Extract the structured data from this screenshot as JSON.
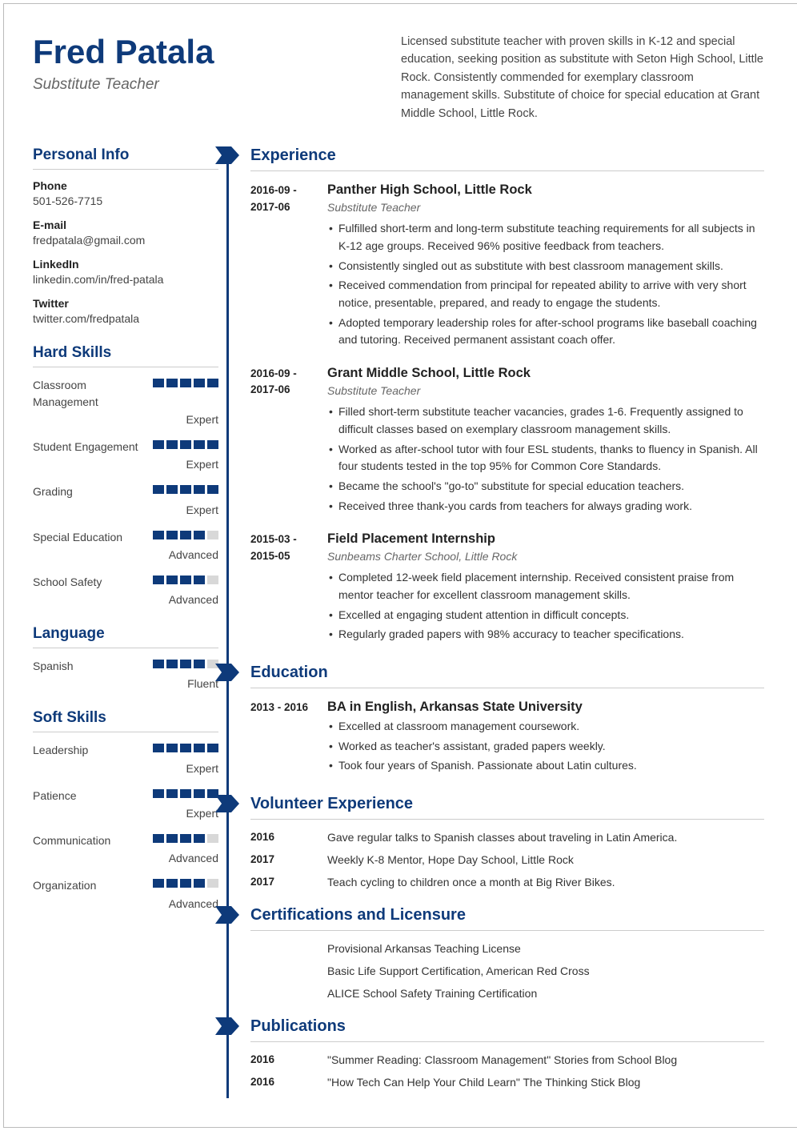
{
  "colors": {
    "accent": "#0e3a7a",
    "text": "#333333",
    "muted": "#666666",
    "rule": "#cccccc",
    "bar_empty": "#d8d8d8"
  },
  "header": {
    "name": "Fred Patala",
    "subtitle": "Substitute Teacher",
    "summary": "Licensed substitute teacher with proven skills in K-12 and special education, seeking position as substitute with Seton High School, Little Rock. Consistently commended for exemplary classroom management skills. Substitute of choice for special education at Grant Middle School, Little Rock."
  },
  "personal_info": {
    "heading": "Personal Info",
    "items": [
      {
        "label": "Phone",
        "value": "501-526-7715"
      },
      {
        "label": "E-mail",
        "value": "fredpatala@gmail.com"
      },
      {
        "label": "LinkedIn",
        "value": "linkedin.com/in/fred-patala"
      },
      {
        "label": "Twitter",
        "value": "twitter.com/fredpatala"
      }
    ]
  },
  "hard_skills": {
    "heading": "Hard Skills",
    "items": [
      {
        "name": "Classroom Management",
        "level": "Expert",
        "filled": 5
      },
      {
        "name": "Student Engagement",
        "level": "Expert",
        "filled": 5
      },
      {
        "name": "Grading",
        "level": "Expert",
        "filled": 5
      },
      {
        "name": "Special Education",
        "level": "Advanced",
        "filled": 4
      },
      {
        "name": "School Safety",
        "level": "Advanced",
        "filled": 4
      }
    ]
  },
  "language": {
    "heading": "Language",
    "items": [
      {
        "name": "Spanish",
        "level": "Fluent",
        "filled": 4
      }
    ]
  },
  "soft_skills": {
    "heading": "Soft Skills",
    "items": [
      {
        "name": "Leadership",
        "level": "Expert",
        "filled": 5
      },
      {
        "name": "Patience",
        "level": "Expert",
        "filled": 5
      },
      {
        "name": "Communication",
        "level": "Advanced",
        "filled": 4
      },
      {
        "name": "Organization",
        "level": "Advanced",
        "filled": 4
      }
    ]
  },
  "experience": {
    "heading": "Experience",
    "entries": [
      {
        "date": "2016-09 - 2017-06",
        "title": "Panther High School, Little Rock",
        "subtitle": "Substitute Teacher",
        "bullets": [
          "Fulfilled short-term and long-term substitute teaching requirements for all subjects in K-12 age groups. Received 96% positive feedback from teachers.",
          "Consistently singled out as substitute with best classroom management skills.",
          "Received commendation from principal for repeated ability to arrive with very short notice, presentable, prepared, and ready to engage the students.",
          "Adopted temporary leadership roles for after-school programs like baseball coaching and tutoring. Received permanent assistant coach offer."
        ]
      },
      {
        "date": "2016-09 - 2017-06",
        "title": "Grant Middle School, Little Rock",
        "subtitle": "Substitute Teacher",
        "bullets": [
          "Filled short-term substitute teacher vacancies, grades 1-6. Frequently assigned to difficult classes based on exemplary classroom management skills.",
          "Worked as after-school tutor with four ESL students, thanks to fluency in Spanish. All four students tested in the top 95% for Common Core Standards.",
          "Became the school's \"go-to\" substitute for special education teachers.",
          "Received three thank-you cards from teachers for always grading work."
        ]
      },
      {
        "date": "2015-03 - 2015-05",
        "title": "Field Placement Internship",
        "subtitle": "Sunbeams Charter School, Little Rock",
        "bullets": [
          "Completed 12-week field placement internship. Received consistent praise from mentor teacher for excellent classroom management skills.",
          "Excelled at engaging student attention in difficult concepts.",
          "Regularly graded papers with 98% accuracy to teacher specifications."
        ]
      }
    ]
  },
  "education": {
    "heading": "Education",
    "entries": [
      {
        "date": "2013 - 2016",
        "title": "BA in English, Arkansas State University",
        "bullets": [
          "Excelled at classroom management coursework.",
          "Worked as teacher's assistant, graded papers weekly.",
          "Took four years of Spanish. Passionate about Latin cultures."
        ]
      }
    ]
  },
  "volunteer": {
    "heading": "Volunteer Experience",
    "rows": [
      {
        "date": "2016",
        "text": "Gave regular talks to Spanish classes about traveling in Latin America."
      },
      {
        "date": "2017",
        "text": "Weekly K-8 Mentor, Hope Day School, Little Rock"
      },
      {
        "date": "2017",
        "text": "Teach cycling to children once a month at Big River Bikes."
      }
    ]
  },
  "certifications": {
    "heading": "Certifications and Licensure",
    "rows": [
      "Provisional Arkansas Teaching License",
      "Basic Life Support Certification, American Red Cross",
      "ALICE School Safety Training Certification"
    ]
  },
  "publications": {
    "heading": "Publications",
    "rows": [
      {
        "date": "2016",
        "text": "\"Summer Reading: Classroom Management\" Stories from School Blog"
      },
      {
        "date": "2016",
        "text": "\"How Tech Can Help Your Child Learn\" The Thinking Stick Blog"
      }
    ]
  }
}
